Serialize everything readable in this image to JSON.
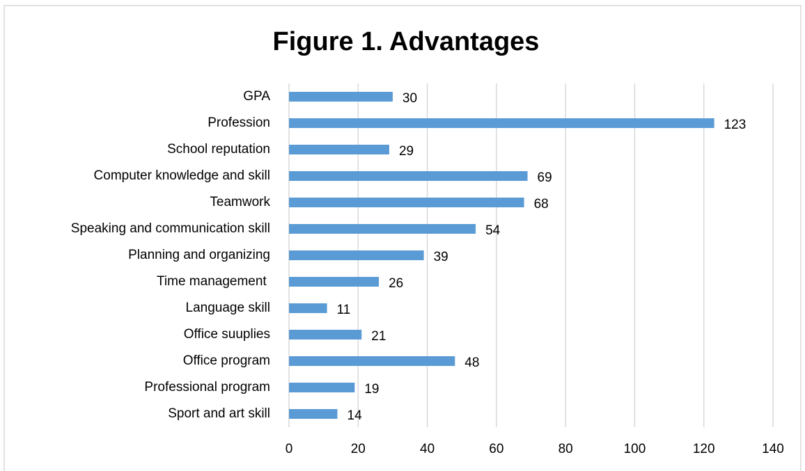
{
  "chart_data": {
    "type": "bar",
    "orientation": "horizontal",
    "title": "Figure 1. Advantages",
    "categories": [
      "GPA",
      "Profession",
      "School reputation",
      "Computer knowledge and skill",
      "Teamwork",
      "Speaking and communication skill",
      "Planning and organizing",
      "Time management ",
      "Language skill",
      "Office suuplies",
      "Office program",
      "Professional program",
      "Sport and art skill"
    ],
    "values": [
      30,
      123,
      29,
      69,
      68,
      54,
      39,
      26,
      11,
      21,
      48,
      19,
      14
    ],
    "color": "#5b9bd5",
    "xlim": [
      0,
      140
    ],
    "xticks": [
      0,
      20,
      40,
      60,
      80,
      100,
      120,
      140
    ],
    "grid": true,
    "data_labels": true
  }
}
